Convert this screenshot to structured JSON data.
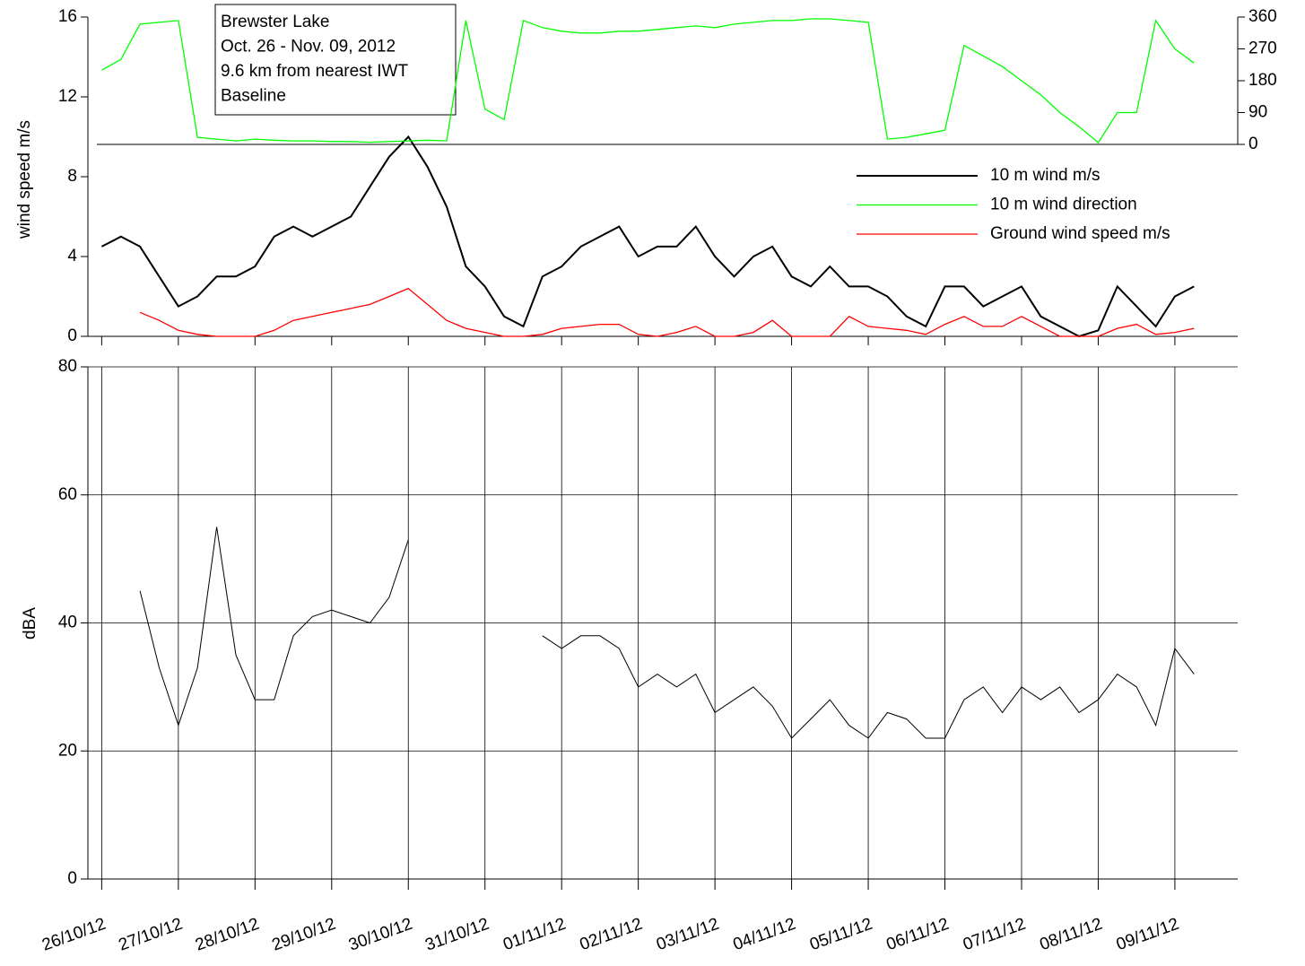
{
  "chart_data": [
    {
      "type": "line",
      "ylabel": "wind speed m/s",
      "annotation": [
        "Brewster Lake",
        "Oct. 26 - Nov. 09, 2012",
        "9.6 km from nearest IWT",
        "Baseline"
      ],
      "x": [
        0,
        0.25,
        0.5,
        0.75,
        1,
        1.25,
        1.5,
        1.75,
        2,
        2.25,
        2.5,
        2.75,
        3,
        3.25,
        3.5,
        3.75,
        4,
        4.25,
        4.5,
        4.75,
        5,
        5.25,
        5.5,
        5.75,
        6,
        6.25,
        6.5,
        6.75,
        7,
        7.25,
        7.5,
        7.75,
        8,
        8.25,
        8.5,
        8.75,
        9,
        9.25,
        9.5,
        9.75,
        10,
        10.25,
        10.5,
        10.75,
        11,
        11.25,
        11.5,
        11.75,
        12,
        12.25,
        12.5,
        12.75,
        13,
        13.25,
        13.5,
        13.75,
        14,
        14.25
      ],
      "xlim": [
        -0.18,
        14.82
      ],
      "ylim": [
        0,
        16
      ],
      "yticks": [
        0,
        4,
        8,
        12,
        16
      ],
      "y2lim": [
        0,
        360
      ],
      "y2ticks": [
        0,
        90,
        180,
        270,
        360
      ],
      "series": [
        {
          "name": "10 m wind m/s",
          "color": "#000000",
          "values": [
            4.5,
            5,
            4.5,
            3,
            1.5,
            2,
            3,
            3,
            3.5,
            5,
            5.5,
            5,
            5.5,
            6,
            7.5,
            9,
            10,
            8.5,
            6.5,
            3.5,
            2.5,
            1,
            0.5,
            3,
            3.5,
            4.5,
            5,
            5.5,
            4,
            4.5,
            4.5,
            5.5,
            4,
            3,
            4,
            4.5,
            3,
            2.5,
            3.5,
            2.5,
            2.5,
            2,
            1,
            0.5,
            2.5,
            2.5,
            1.5,
            2,
            2.5,
            1,
            0.5,
            0,
            0.3,
            2.5,
            1.5,
            0.5,
            2,
            2.5
          ]
        },
        {
          "name": "10 m wind direction",
          "color": "#00ff00",
          "axis": "y2",
          "values": [
            210,
            240,
            340,
            345,
            350,
            20,
            15,
            10,
            15,
            12,
            10,
            10,
            8,
            8,
            6,
            8,
            10,
            12,
            10,
            350,
            100,
            70,
            350,
            330,
            320,
            315,
            315,
            320,
            320,
            325,
            330,
            335,
            330,
            340,
            345,
            350,
            350,
            355,
            355,
            350,
            345,
            15,
            20,
            30,
            40,
            280,
            250,
            220,
            180,
            140,
            90,
            50,
            5,
            90,
            90,
            350,
            270,
            230
          ]
        },
        {
          "name": "Ground wind speed m/s",
          "color": "#ff0000",
          "values": [
            null,
            null,
            1.2,
            0.8,
            0.3,
            0.1,
            0,
            0,
            0,
            0.3,
            0.8,
            1,
            1.2,
            1.4,
            1.6,
            2,
            2.4,
            1.6,
            0.8,
            0.4,
            0.2,
            0,
            0,
            0.1,
            0.4,
            0.5,
            0.6,
            0.6,
            0.1,
            0,
            0.2,
            0.5,
            0,
            0,
            0.2,
            0.8,
            0,
            0,
            0,
            1,
            0.5,
            0.4,
            0.3,
            0.1,
            0.6,
            1,
            0.5,
            0.5,
            1,
            0.5,
            0,
            0,
            0,
            0.4,
            0.6,
            0.1,
            0.2,
            0.4
          ]
        }
      ]
    },
    {
      "type": "line",
      "ylabel": "dBA",
      "x": [
        0,
        0.25,
        0.5,
        0.75,
        1,
        1.25,
        1.5,
        1.75,
        2,
        2.25,
        2.5,
        2.75,
        3,
        3.25,
        3.5,
        3.75,
        4,
        4.25,
        4.5,
        4.75,
        5,
        5.25,
        5.5,
        5.75,
        6,
        6.25,
        6.5,
        6.75,
        7,
        7.25,
        7.5,
        7.75,
        8,
        8.25,
        8.5,
        8.75,
        9,
        9.25,
        9.5,
        9.75,
        10,
        10.25,
        10.5,
        10.75,
        11,
        11.25,
        11.5,
        11.75,
        12,
        12.25,
        12.5,
        12.75,
        13,
        13.25,
        13.5,
        13.75,
        14,
        14.25
      ],
      "xlim": [
        -0.18,
        14.82
      ],
      "xticks": [
        {
          "value": 0,
          "label": "26/10/12"
        },
        {
          "value": 1,
          "label": "27/10/12"
        },
        {
          "value": 2,
          "label": "28/10/12"
        },
        {
          "value": 3,
          "label": "29/10/12"
        },
        {
          "value": 4,
          "label": "30/10/12"
        },
        {
          "value": 5,
          "label": "31/10/12"
        },
        {
          "value": 6,
          "label": "01/11/12"
        },
        {
          "value": 7,
          "label": "02/11/12"
        },
        {
          "value": 8,
          "label": "03/11/12"
        },
        {
          "value": 9,
          "label": "04/11/12"
        },
        {
          "value": 10,
          "label": "05/11/12"
        },
        {
          "value": 11,
          "label": "06/11/12"
        },
        {
          "value": 12,
          "label": "07/11/12"
        },
        {
          "value": 13,
          "label": "08/11/12"
        },
        {
          "value": 14,
          "label": "09/11/12"
        }
      ],
      "ylim": [
        0,
        80
      ],
      "yticks": [
        0,
        20,
        40,
        60,
        80
      ],
      "grid": true,
      "series": [
        {
          "color": "#000000",
          "values": [
            null,
            null,
            45,
            33,
            24,
            33,
            55,
            35,
            28,
            28,
            38,
            41,
            42,
            41,
            40,
            44,
            53,
            null,
            null,
            null,
            null,
            null,
            null,
            38,
            36,
            38,
            38,
            36,
            30,
            32,
            30,
            32,
            26,
            28,
            30,
            27,
            22,
            25,
            28,
            24,
            22,
            26,
            25,
            22,
            22,
            28,
            30,
            26,
            30,
            28,
            30,
            26,
            28,
            32,
            30,
            24,
            36,
            32
          ]
        }
      ]
    }
  ]
}
